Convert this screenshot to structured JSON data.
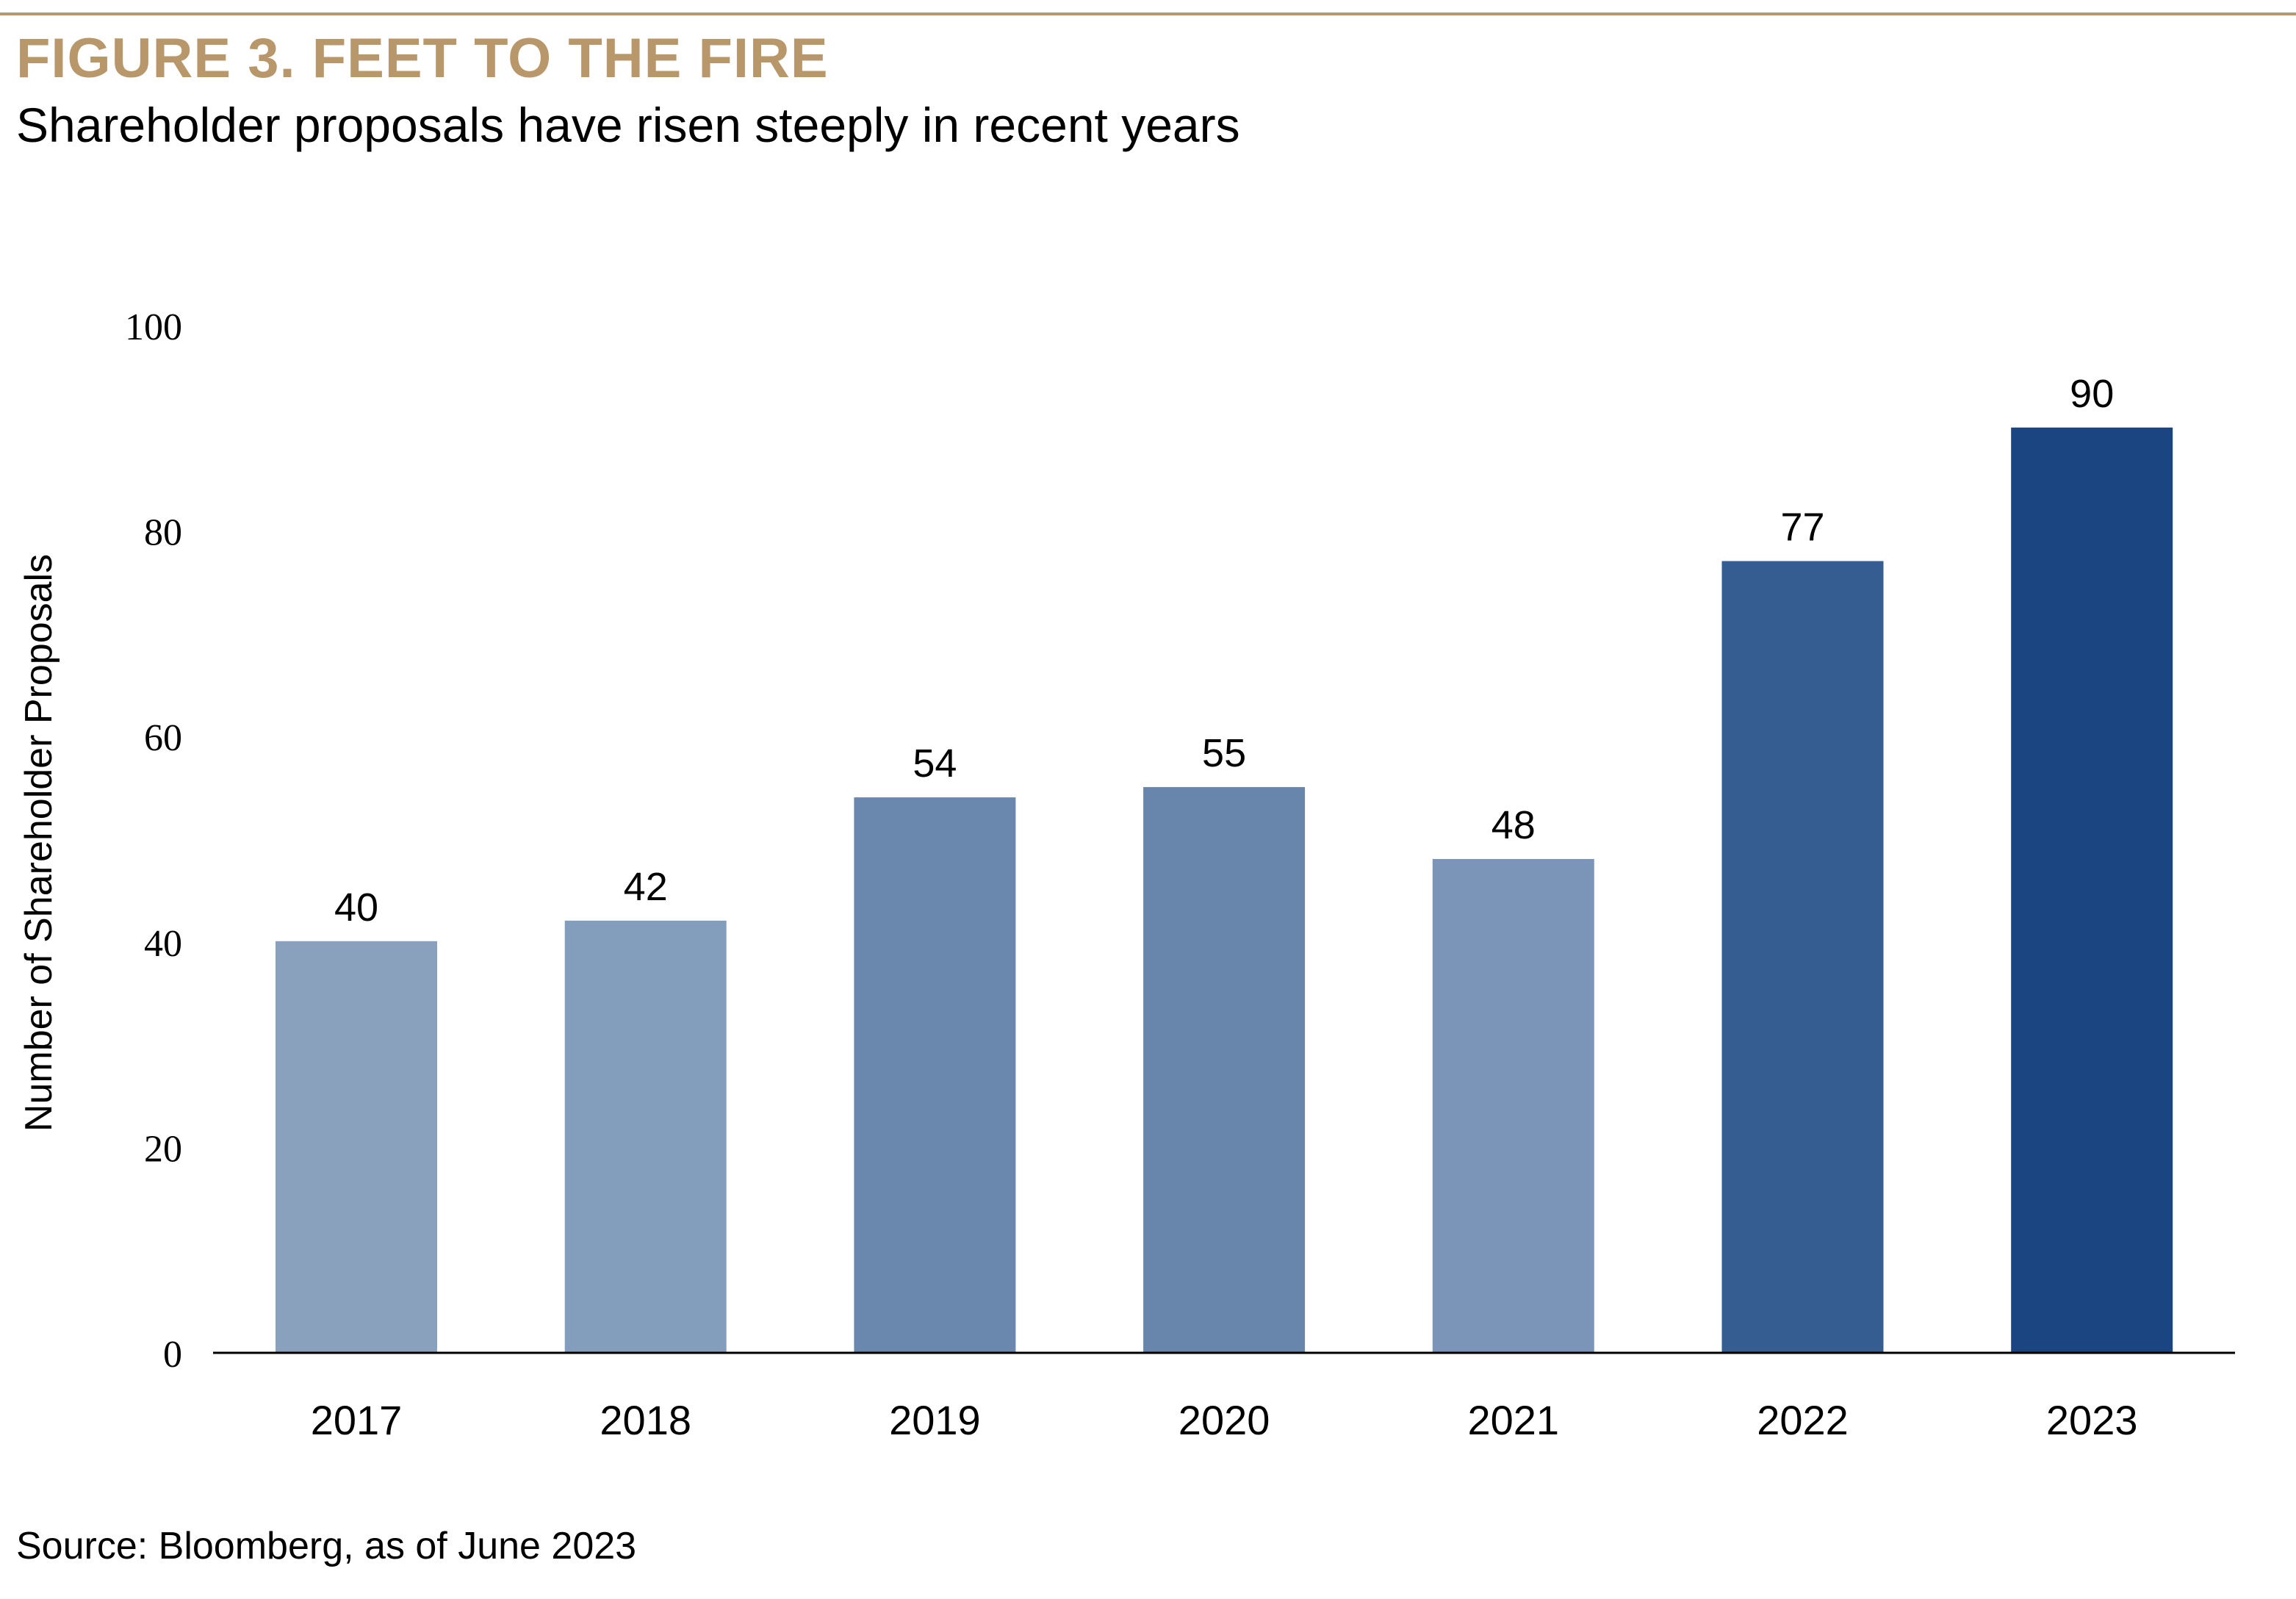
{
  "figure": {
    "title": "FIGURE 3. FEET TO THE FIRE",
    "subtitle": "Shareholder proposals have risen steeply in recent years",
    "source": "Source: Bloomberg, as of June 2023"
  },
  "colors": {
    "title_gold": "#b8976a",
    "axis": "#000000"
  },
  "chart_data": {
    "type": "bar",
    "title": "FIGURE 3. FEET TO THE FIRE",
    "subtitle": "Shareholder proposals have risen steeply in recent years",
    "xlabel": "",
    "ylabel": "Number of Shareholder Proposals",
    "categories": [
      "2017",
      "2018",
      "2019",
      "2020",
      "2021",
      "2022",
      "2023"
    ],
    "values": [
      40,
      42,
      54,
      55,
      48,
      77,
      90
    ],
    "data_labels": [
      "40",
      "42",
      "54",
      "55",
      "48",
      "77",
      "90"
    ],
    "bar_colors": [
      "#8aa1be",
      "#839ebd",
      "#6a88ad",
      "#6886ac",
      "#7a95b8",
      "#355d91",
      "#1a4580"
    ],
    "ylim": [
      0,
      100
    ],
    "yticks": [
      0,
      20,
      40,
      60,
      80,
      100
    ],
    "ytick_labels": [
      "0",
      "20",
      "40",
      "60",
      "80",
      "100"
    ],
    "grid": false,
    "legend": "none"
  }
}
